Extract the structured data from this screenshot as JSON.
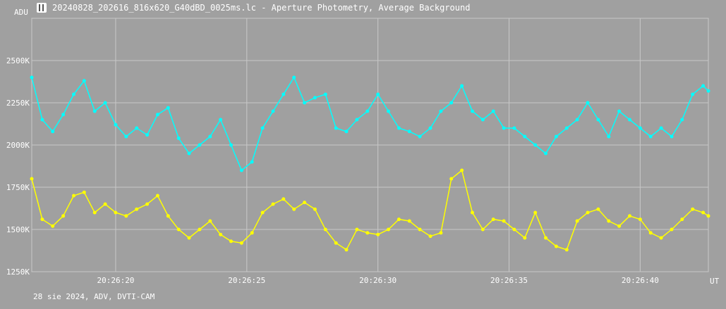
{
  "window": {
    "title": "20240828_202616_816x620_G40dBD_0025ms.lc - Aperture Photometry, Average Background",
    "icon": "light-curve-app-icon"
  },
  "footer": {
    "info": "28 sie 2024, ADV, DVTI-CAM"
  },
  "colors": {
    "background": "#a0a0a0",
    "grid": "#c8c8c8",
    "series1": "#00ffff",
    "series2": "#ffff00",
    "text": "#ffffff"
  },
  "chart_data": {
    "type": "line",
    "title": "",
    "ylabel": "ADU",
    "xlabel": "UT",
    "x_range_seconds": [
      16.8,
      42.6
    ],
    "ylim": [
      1250000,
      2750000
    ],
    "x_ticks": [
      {
        "t": 20,
        "label": "20:26:20"
      },
      {
        "t": 25,
        "label": "20:26:25"
      },
      {
        "t": 30,
        "label": "20:26:30"
      },
      {
        "t": 35,
        "label": "20:26:35"
      },
      {
        "t": 40,
        "label": "20:26:40"
      }
    ],
    "y_ticks": [
      {
        "v": 1250000,
        "label": "1250K"
      },
      {
        "v": 1500000,
        "label": "1500K"
      },
      {
        "v": 1750000,
        "label": "1750K"
      },
      {
        "v": 2000000,
        "label": "2000K"
      },
      {
        "v": 2250000,
        "label": "2250K"
      },
      {
        "v": 2500000,
        "label": "2500K"
      }
    ],
    "grid": true,
    "series": [
      {
        "color": "#00ffff",
        "x": [
          16.8,
          17.2,
          17.6,
          18.0,
          18.4,
          18.8,
          19.2,
          19.6,
          20.0,
          20.4,
          20.8,
          21.2,
          21.6,
          22.0,
          22.4,
          22.8,
          23.2,
          23.6,
          24.0,
          24.4,
          24.8,
          25.2,
          25.6,
          26.0,
          26.4,
          26.8,
          27.2,
          27.6,
          28.0,
          28.4,
          28.8,
          29.2,
          29.6,
          30.0,
          30.4,
          30.8,
          31.2,
          31.6,
          32.0,
          32.4,
          32.8,
          33.2,
          33.6,
          34.0,
          34.4,
          34.8,
          35.2,
          35.6,
          36.0,
          36.4,
          36.8,
          37.2,
          37.6,
          38.0,
          38.4,
          38.8,
          39.2,
          39.6,
          40.0,
          40.4,
          40.8,
          41.2,
          41.6,
          42.0,
          42.4,
          42.6
        ],
        "values": [
          2400000,
          2150000,
          2080000,
          2180000,
          2300000,
          2380000,
          2200000,
          2250000,
          2120000,
          2050000,
          2100000,
          2060000,
          2180000,
          2220000,
          2040000,
          1950000,
          2000000,
          2050000,
          2150000,
          2000000,
          1850000,
          1900000,
          2100000,
          2200000,
          2300000,
          2400000,
          2250000,
          2280000,
          2300000,
          2100000,
          2080000,
          2150000,
          2200000,
          2300000,
          2200000,
          2100000,
          2080000,
          2050000,
          2100000,
          2200000,
          2250000,
          2350000,
          2200000,
          2150000,
          2200000,
          2100000,
          2100000,
          2050000,
          2000000,
          1950000,
          2050000,
          2100000,
          2150000,
          2250000,
          2150000,
          2050000,
          2200000,
          2150000,
          2100000,
          2050000,
          2100000,
          2050000,
          2150000,
          2300000,
          2350000,
          2320000
        ]
      },
      {
        "color": "#ffff00",
        "x": [
          16.8,
          17.2,
          17.6,
          18.0,
          18.4,
          18.8,
          19.2,
          19.6,
          20.0,
          20.4,
          20.8,
          21.2,
          21.6,
          22.0,
          22.4,
          22.8,
          23.2,
          23.6,
          24.0,
          24.4,
          24.8,
          25.2,
          25.6,
          26.0,
          26.4,
          26.8,
          27.2,
          27.6,
          28.0,
          28.4,
          28.8,
          29.2,
          29.6,
          30.0,
          30.4,
          30.8,
          31.2,
          31.6,
          32.0,
          32.4,
          32.8,
          33.2,
          33.6,
          34.0,
          34.4,
          34.8,
          35.2,
          35.6,
          36.0,
          36.4,
          36.8,
          37.2,
          37.6,
          38.0,
          38.4,
          38.8,
          39.2,
          39.6,
          40.0,
          40.4,
          40.8,
          41.2,
          41.6,
          42.0,
          42.4,
          42.6
        ],
        "values": [
          1800000,
          1560000,
          1520000,
          1580000,
          1700000,
          1720000,
          1600000,
          1650000,
          1600000,
          1580000,
          1620000,
          1650000,
          1700000,
          1580000,
          1500000,
          1450000,
          1500000,
          1550000,
          1470000,
          1430000,
          1420000,
          1480000,
          1600000,
          1650000,
          1680000,
          1620000,
          1660000,
          1620000,
          1500000,
          1420000,
          1380000,
          1500000,
          1480000,
          1470000,
          1500000,
          1560000,
          1550000,
          1500000,
          1460000,
          1480000,
          1800000,
          1850000,
          1600000,
          1500000,
          1560000,
          1550000,
          1500000,
          1450000,
          1600000,
          1450000,
          1400000,
          1380000,
          1550000,
          1600000,
          1620000,
          1550000,
          1520000,
          1580000,
          1560000,
          1480000,
          1450000,
          1500000,
          1560000,
          1620000,
          1600000,
          1580000
        ]
      }
    ]
  }
}
